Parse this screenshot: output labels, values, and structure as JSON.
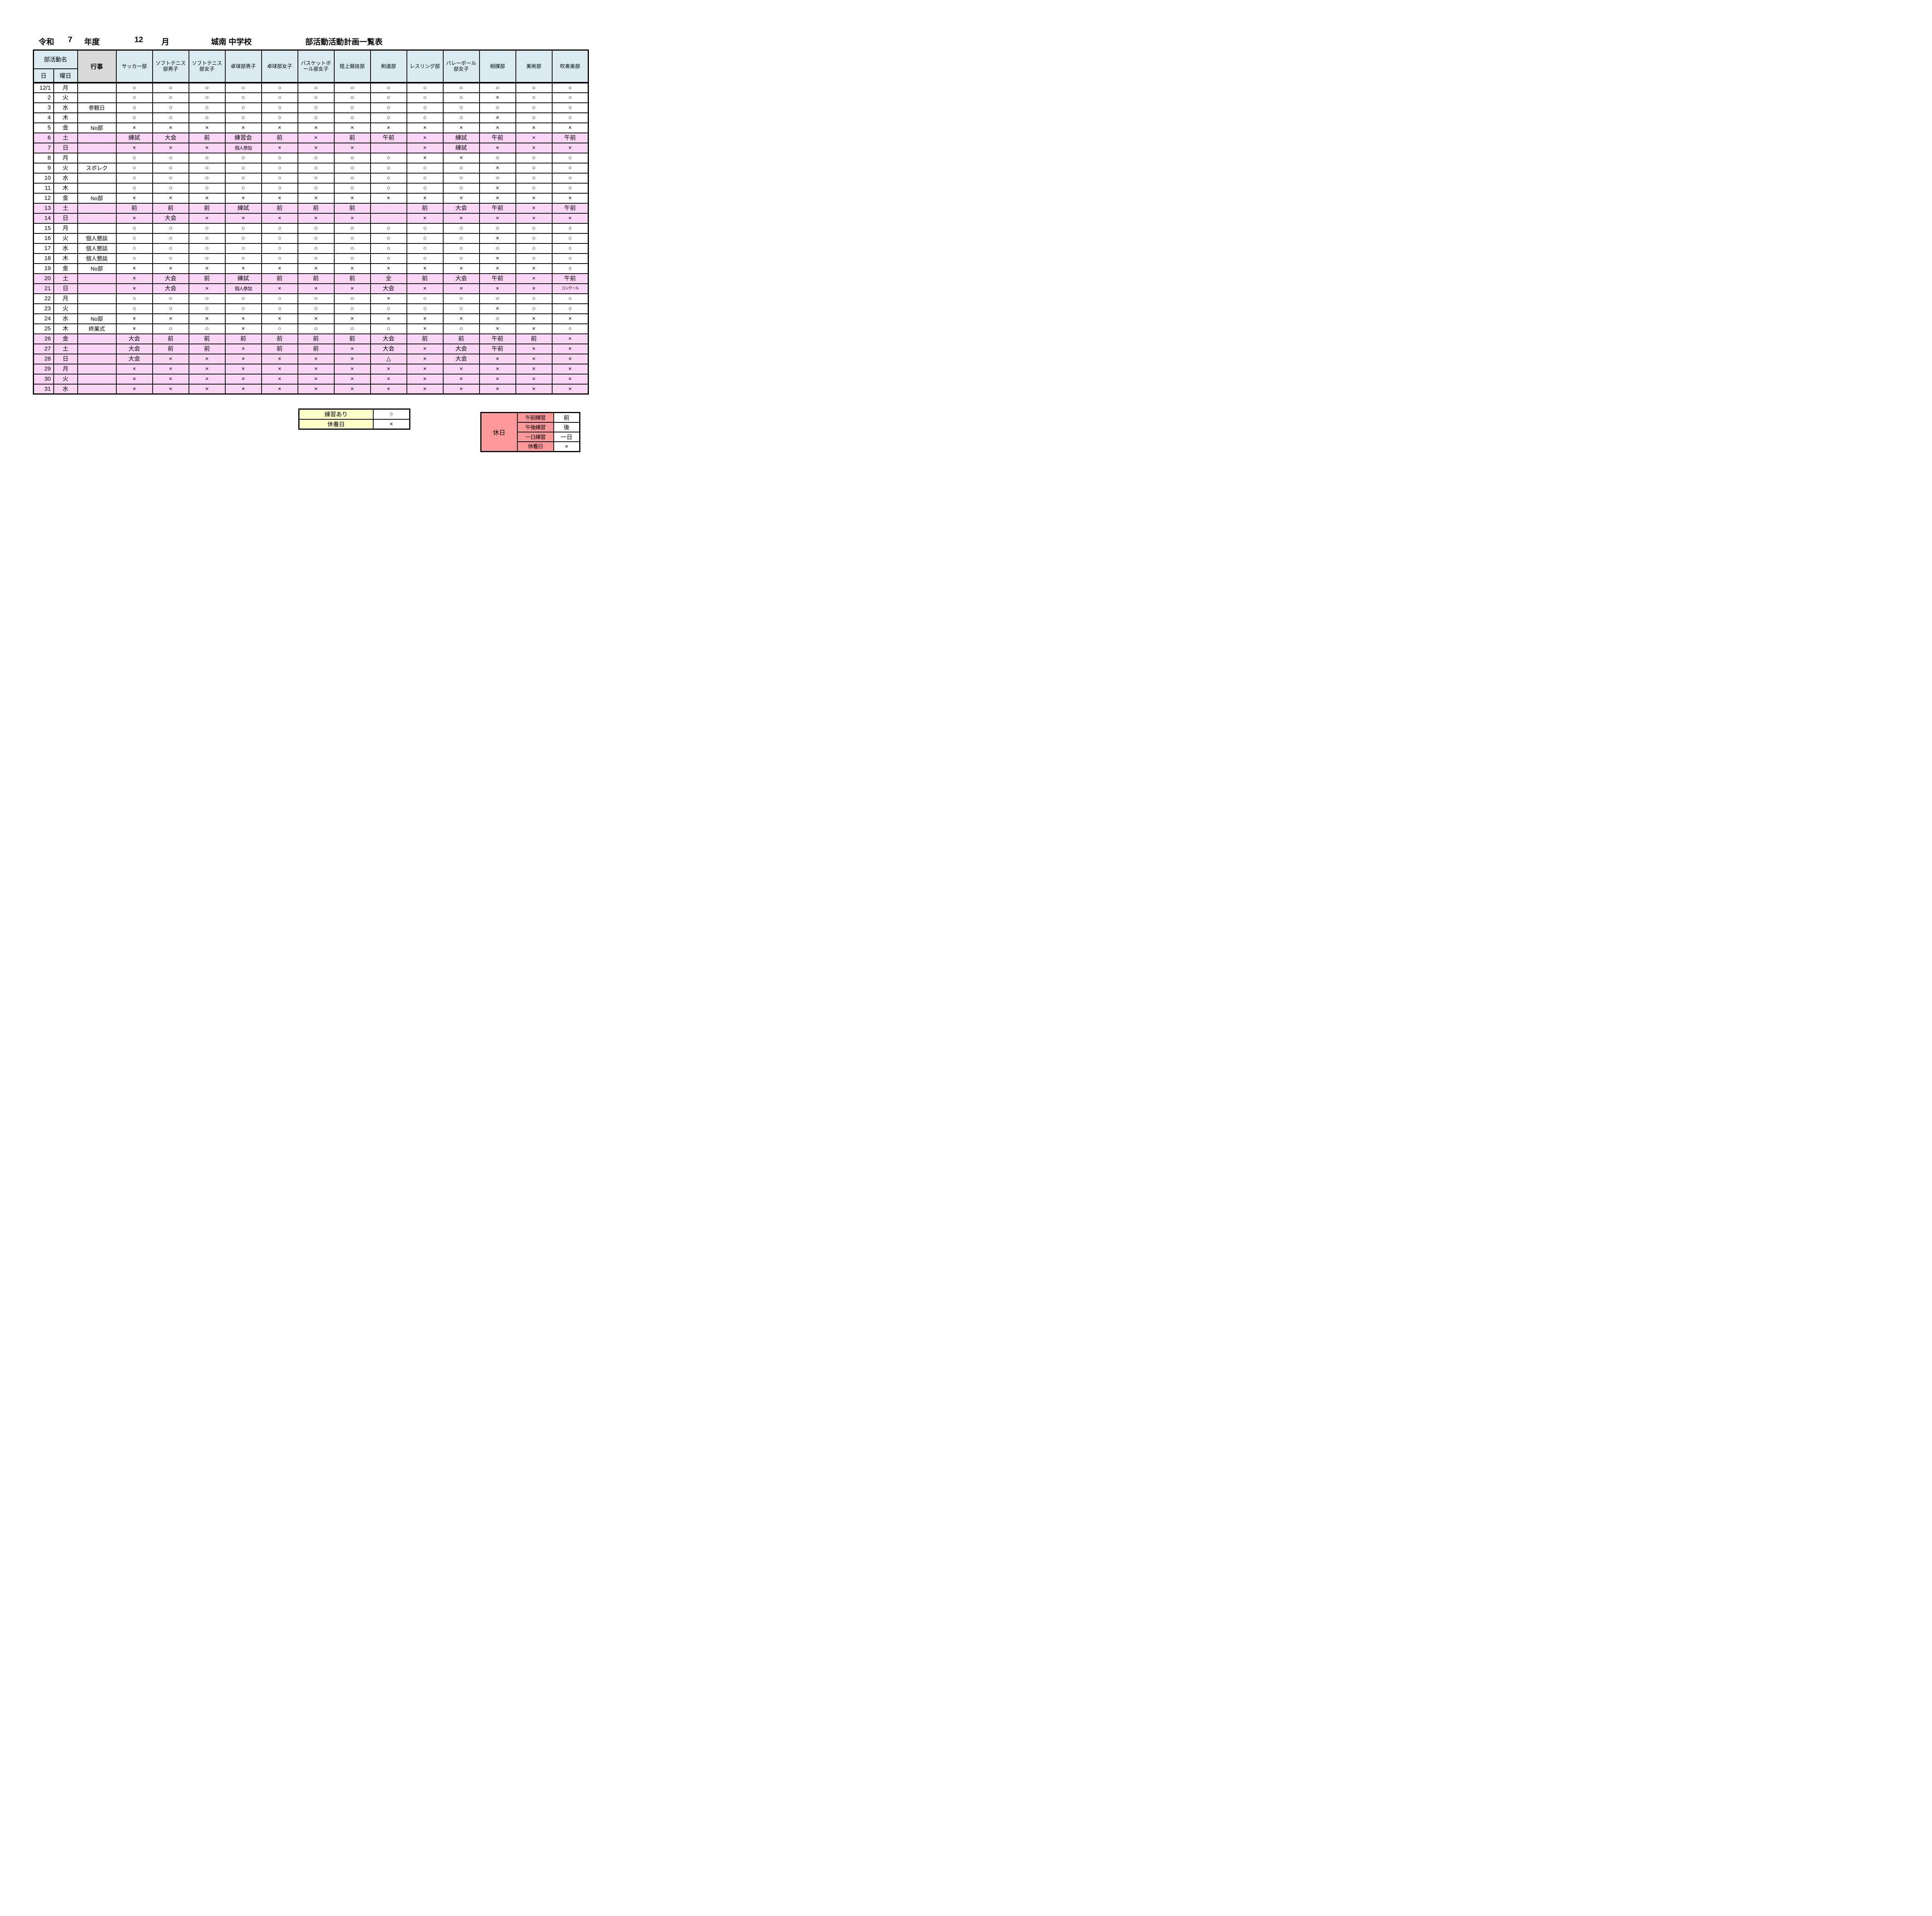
{
  "title": {
    "era": "令和",
    "era_year": "7",
    "nendo_label": "年度",
    "month": "12",
    "month_label": "月",
    "school": "城南 中学校",
    "doc_title": "部活動活動計画一覧表"
  },
  "table": {
    "header": {
      "club_name_label": "部活動名",
      "date_label": "日",
      "weekday_label": "曜日",
      "event_label": "行事",
      "clubs": [
        "サッカー部",
        "ソフトテニス部男子",
        "ソフトテニス部女子",
        "卓球部男子",
        "卓球部女子",
        "バスケットボール部女子",
        "陸上競技部",
        "剣道部",
        "レスリング部",
        "バレーボール部女子",
        "相撲部",
        "美術部",
        "吹奏楽部"
      ]
    },
    "rows": [
      {
        "date": "12/1",
        "weekday": "月",
        "event": "",
        "holiday": false,
        "values": [
          "○",
          "○",
          "○",
          "○",
          "○",
          "○",
          "○",
          "○",
          "○",
          "○",
          "○",
          "○",
          "○"
        ]
      },
      {
        "date": "2",
        "weekday": "火",
        "event": "",
        "holiday": false,
        "values": [
          "○",
          "○",
          "○",
          "○",
          "○",
          "○",
          "○",
          "○",
          "○",
          "○",
          "×",
          "○",
          "○"
        ]
      },
      {
        "date": "3",
        "weekday": "水",
        "event": "参観日",
        "holiday": false,
        "values": [
          "○",
          "○",
          "○",
          "○",
          "○",
          "○",
          "○",
          "○",
          "○",
          "○",
          "○",
          "○",
          "○"
        ]
      },
      {
        "date": "4",
        "weekday": "木",
        "event": "",
        "holiday": false,
        "values": [
          "○",
          "○",
          "○",
          "○",
          "○",
          "○",
          "○",
          "○",
          "○",
          "○",
          "×",
          "○",
          "○"
        ]
      },
      {
        "date": "5",
        "weekday": "金",
        "event": "No部",
        "holiday": false,
        "values": [
          "×",
          "×",
          "×",
          "×",
          "×",
          "×",
          "×",
          "×",
          "×",
          "×",
          "×",
          "×",
          "×"
        ]
      },
      {
        "date": "6",
        "weekday": "土",
        "event": "",
        "holiday": true,
        "values": [
          "練試",
          "大会",
          "前",
          "練習会",
          "前",
          "×",
          "前",
          "午前",
          "×",
          "練試",
          "午前",
          "×",
          "午前"
        ]
      },
      {
        "date": "7",
        "weekday": "日",
        "event": "",
        "holiday": true,
        "values": [
          "×",
          "×",
          "×",
          "個人参加",
          "×",
          "×",
          "×",
          "",
          "×",
          "練試",
          "×",
          "×",
          "×"
        ]
      },
      {
        "date": "8",
        "weekday": "月",
        "event": "",
        "holiday": false,
        "values": [
          "○",
          "○",
          "○",
          "○",
          "○",
          "○",
          "○",
          "○",
          "×",
          "×",
          "○",
          "○",
          "○"
        ]
      },
      {
        "date": "9",
        "weekday": "火",
        "event": "スポレク",
        "holiday": false,
        "values": [
          "○",
          "○",
          "○",
          "○",
          "○",
          "○",
          "○",
          "○",
          "○",
          "○",
          "×",
          "○",
          "○"
        ]
      },
      {
        "date": "10",
        "weekday": "水",
        "event": "",
        "holiday": false,
        "values": [
          "○",
          "○",
          "○",
          "○",
          "○",
          "○",
          "○",
          "○",
          "○",
          "○",
          "○",
          "○",
          "○"
        ]
      },
      {
        "date": "11",
        "weekday": "木",
        "event": "",
        "holiday": false,
        "values": [
          "○",
          "○",
          "○",
          "○",
          "○",
          "○",
          "○",
          "○",
          "○",
          "○",
          "×",
          "○",
          "○"
        ]
      },
      {
        "date": "12",
        "weekday": "金",
        "event": "No部",
        "holiday": false,
        "values": [
          "×",
          "×",
          "×",
          "×",
          "×",
          "×",
          "×",
          "×",
          "×",
          "×",
          "×",
          "×",
          "×"
        ]
      },
      {
        "date": "13",
        "weekday": "土",
        "event": "",
        "holiday": true,
        "values": [
          "前",
          "前",
          "前",
          "練試",
          "前",
          "前",
          "前",
          "",
          "前",
          "大会",
          "午前",
          "×",
          "午前"
        ]
      },
      {
        "date": "14",
        "weekday": "日",
        "event": "",
        "holiday": true,
        "values": [
          "×",
          "大会",
          "×",
          "×",
          "×",
          "×",
          "×",
          "",
          "×",
          "×",
          "×",
          "×",
          "×"
        ]
      },
      {
        "date": "15",
        "weekday": "月",
        "event": "",
        "holiday": false,
        "values": [
          "○",
          "○",
          "○",
          "○",
          "○",
          "○",
          "○",
          "○",
          "○",
          "○",
          "○",
          "○",
          "○"
        ]
      },
      {
        "date": "16",
        "weekday": "火",
        "event": "個人懇談",
        "holiday": false,
        "values": [
          "○",
          "○",
          "○",
          "○",
          "○",
          "○",
          "○",
          "○",
          "○",
          "○",
          "×",
          "○",
          "○"
        ]
      },
      {
        "date": "17",
        "weekday": "水",
        "event": "個人懇談",
        "holiday": false,
        "values": [
          "○",
          "○",
          "○",
          "○",
          "○",
          "○",
          "○",
          "○",
          "○",
          "○",
          "○",
          "○",
          "○"
        ]
      },
      {
        "date": "18",
        "weekday": "木",
        "event": "個人懇談",
        "holiday": false,
        "values": [
          "○",
          "○",
          "○",
          "○",
          "○",
          "○",
          "○",
          "○",
          "○",
          "○",
          "×",
          "○",
          "○"
        ]
      },
      {
        "date": "19",
        "weekday": "金",
        "event": "No部",
        "holiday": false,
        "values": [
          "×",
          "×",
          "×",
          "×",
          "×",
          "×",
          "×",
          "×",
          "×",
          "×",
          "×",
          "×",
          "○"
        ]
      },
      {
        "date": "20",
        "weekday": "土",
        "event": "",
        "holiday": true,
        "values": [
          "×",
          "大会",
          "前",
          "練試",
          "前",
          "前",
          "前",
          "全",
          "前",
          "大会",
          "午前",
          "×",
          "午前"
        ]
      },
      {
        "date": "21",
        "weekday": "日",
        "event": "",
        "holiday": true,
        "values": [
          "×",
          "大会",
          "×",
          "個人参加",
          "×",
          "×",
          "×",
          "大会",
          "×",
          "×",
          "×",
          "×",
          "コンクール"
        ]
      },
      {
        "date": "22",
        "weekday": "月",
        "event": "",
        "holiday": false,
        "values": [
          "○",
          "○",
          "○",
          "○",
          "○",
          "○",
          "○",
          "×",
          "○",
          "○",
          "○",
          "○",
          "○"
        ]
      },
      {
        "date": "23",
        "weekday": "火",
        "event": "",
        "holiday": false,
        "values": [
          "○",
          "○",
          "○",
          "○",
          "○",
          "○",
          "○",
          "○",
          "○",
          "○",
          "×",
          "○",
          "○"
        ]
      },
      {
        "date": "24",
        "weekday": "水",
        "event": "No部",
        "holiday": false,
        "values": [
          "×",
          "×",
          "×",
          "×",
          "×",
          "×",
          "×",
          "×",
          "×",
          "×",
          "○",
          "×",
          "×"
        ]
      },
      {
        "date": "25",
        "weekday": "木",
        "event": "終業式",
        "holiday": false,
        "values": [
          "×",
          "○",
          "○",
          "×",
          "○",
          "○",
          "○",
          "○",
          "×",
          "○",
          "×",
          "×",
          "○"
        ]
      },
      {
        "date": "26",
        "weekday": "金",
        "event": "",
        "holiday": true,
        "values": [
          "大会",
          "前",
          "前",
          "前",
          "前",
          "前",
          "前",
          "大会",
          "前",
          "前",
          "午前",
          "前",
          "×"
        ]
      },
      {
        "date": "27",
        "weekday": "土",
        "event": "",
        "holiday": true,
        "values": [
          "大会",
          "前",
          "前",
          "×",
          "前",
          "前",
          "×",
          "大会",
          "×",
          "大会",
          "午前",
          "×",
          "×"
        ]
      },
      {
        "date": "28",
        "weekday": "日",
        "event": "",
        "holiday": true,
        "values": [
          "大会",
          "×",
          "×",
          "×",
          "×",
          "×",
          "×",
          "△",
          "×",
          "大会",
          "×",
          "×",
          "×"
        ]
      },
      {
        "date": "29",
        "weekday": "月",
        "event": "",
        "holiday": true,
        "values": [
          "×",
          "×",
          "×",
          "×",
          "×",
          "×",
          "×",
          "×",
          "×",
          "×",
          "×",
          "×",
          "×"
        ]
      },
      {
        "date": "30",
        "weekday": "火",
        "event": "",
        "holiday": true,
        "values": [
          "×",
          "×",
          "×",
          "×",
          "×",
          "×",
          "×",
          "×",
          "×",
          "×",
          "×",
          "×",
          "×"
        ]
      },
      {
        "date": "31",
        "weekday": "水",
        "event": "",
        "holiday": true,
        "values": [
          "×",
          "×",
          "×",
          "×",
          "×",
          "×",
          "×",
          "×",
          "×",
          "×",
          "×",
          "×",
          "×"
        ]
      }
    ]
  },
  "legend_practice": {
    "rows": [
      {
        "label": "練習あり",
        "mark": "○"
      },
      {
        "label": "休養日",
        "mark": "×"
      }
    ]
  },
  "legend_holiday": {
    "title": "休日",
    "rows": [
      {
        "label": "午前練習",
        "mark": "前"
      },
      {
        "label": "午後練習",
        "mark": "後"
      },
      {
        "label": "一日練習",
        "mark": "一日"
      },
      {
        "label": "休養日",
        "mark": "×"
      }
    ]
  },
  "colors": {
    "header_blue": "#D9EAF1",
    "event_gray": "#D9D9D9",
    "holiday_pink": "#FBD5F6",
    "legend_yellow": "#FFFFC8",
    "legend_salmon": "#FF9999",
    "grid_black": "#000000"
  }
}
